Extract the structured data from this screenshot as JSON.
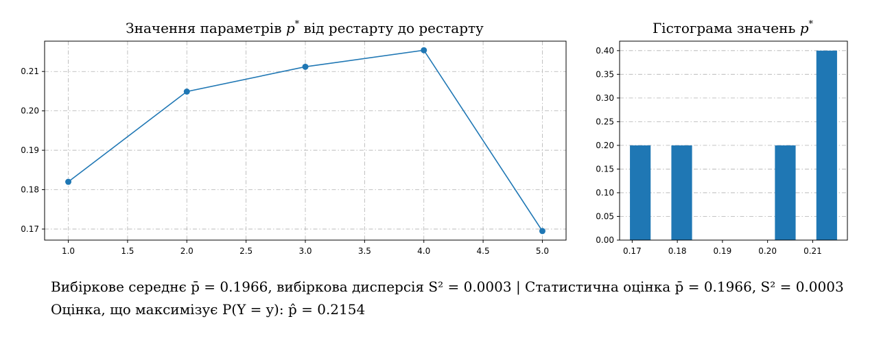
{
  "chart_data": [
    {
      "type": "line",
      "title": "Значення параметрів p* від рестарту до рестарту",
      "title_text": "Значення параметрів ",
      "title_symbol": "p",
      "title_sup": "*",
      "title_suffix": " від рестарту до рестарту",
      "x": [
        1.0,
        2.0,
        3.0,
        4.0,
        5.0
      ],
      "y": [
        0.182,
        0.2049,
        0.2112,
        0.2154,
        0.1695
      ],
      "xlim": [
        0.8,
        5.2
      ],
      "ylim": [
        0.1672,
        0.2177
      ],
      "xticks": [
        "1.0",
        "1.5",
        "2.0",
        "2.5",
        "3.0",
        "3.5",
        "4.0",
        "4.5",
        "5.0"
      ],
      "yticks": [
        "0.17",
        "0.18",
        "0.19",
        "0.20",
        "0.21"
      ],
      "grid": true,
      "color": "#1f77b4",
      "marker": "circle"
    },
    {
      "type": "bar",
      "title": "Гістограма значень p*",
      "title_text": "Гістограма значень ",
      "title_symbol": "p",
      "title_sup": "*",
      "bins": [
        {
          "from": 0.1695,
          "to": 0.17409,
          "value": 0.2
        },
        {
          "from": 0.17868,
          "to": 0.18327,
          "value": 0.2
        },
        {
          "from": 0.20163,
          "to": 0.20622,
          "value": 0.2
        },
        {
          "from": 0.21081,
          "to": 0.2154,
          "value": 0.4
        }
      ],
      "xlim": [
        0.16721,
        0.21769
      ],
      "ylim": [
        0.0,
        0.42
      ],
      "xticks": [
        "0.17",
        "0.18",
        "0.19",
        "0.20",
        "0.21"
      ],
      "yticks": [
        "0.00",
        "0.05",
        "0.10",
        "0.15",
        "0.20",
        "0.25",
        "0.30",
        "0.35",
        "0.40"
      ],
      "grid": true,
      "color": "#1f77b4"
    }
  ],
  "summary": {
    "line1": "Вибіркове середнє p̄ = 0.1966, вибіркова дисперсія S² = 0.0003 | Статистична оцінка p̄ = 0.1966, S² = 0.0003",
    "line2": "Оцінка, що максимізує P(Y = y): p̂ = 0.2154"
  }
}
